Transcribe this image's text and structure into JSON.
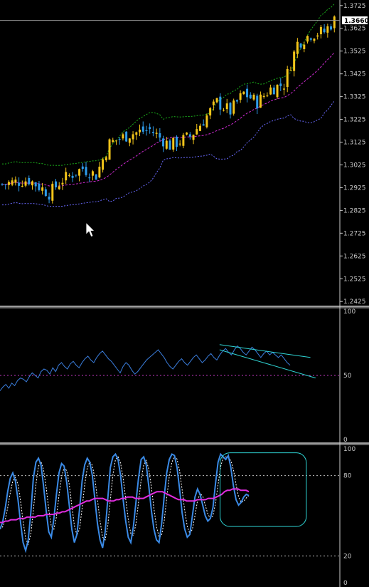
{
  "chart_data": [
    {
      "type": "candlestick",
      "pane": "price",
      "y_ticks": [
        "1.3725",
        "1.3625",
        "1.3525",
        "1.3425",
        "1.3325",
        "1.3225",
        "1.3125",
        "1.3025",
        "1.2925",
        "1.2825",
        "1.2725",
        "1.2625",
        "1.2525",
        "1.2425"
      ],
      "current_price_label": "1.3660",
      "current_price": 1.366,
      "ylim": [
        1.241,
        1.374
      ],
      "bar_count": 100,
      "waypoints": [
        [
          0,
          1.294
        ],
        [
          8,
          1.296
        ],
        [
          14,
          1.29
        ],
        [
          18,
          1.296
        ],
        [
          24,
          1.301
        ],
        [
          28,
          1.298
        ],
        [
          32,
          1.312
        ],
        [
          38,
          1.316
        ],
        [
          44,
          1.318
        ],
        [
          50,
          1.311
        ],
        [
          56,
          1.315
        ],
        [
          60,
          1.322
        ],
        [
          64,
          1.33
        ],
        [
          68,
          1.326
        ],
        [
          72,
          1.334
        ],
        [
          76,
          1.33
        ],
        [
          80,
          1.336
        ],
        [
          84,
          1.338
        ],
        [
          88,
          1.356
        ],
        [
          92,
          1.36
        ],
        [
          96,
          1.361
        ],
        [
          99,
          1.366
        ]
      ],
      "bollinger": {
        "upper_color": "#1bb01b",
        "middle_color": "#cc2ad0",
        "lower_color": "#6a6aff"
      },
      "up_color": "#f2c41a",
      "down_color": "#2e9bea",
      "cursor_arrow": {
        "bar": 25,
        "price": 1.2772
      }
    },
    {
      "type": "line",
      "pane": "rsi",
      "y_ticks": [
        "100",
        "50",
        "0"
      ],
      "ylim": [
        0,
        100
      ],
      "level": 50,
      "line_color": "#3a7ddc",
      "level_color": "#c23ac2",
      "values": [
        38,
        41,
        43,
        40,
        44,
        42,
        46,
        48,
        47,
        45,
        49,
        52,
        50,
        48,
        53,
        55,
        54,
        51,
        56,
        53,
        58,
        60,
        57,
        55,
        59,
        61,
        58,
        56,
        60,
        63,
        65,
        62,
        60,
        64,
        67,
        69,
        66,
        63,
        61,
        58,
        55,
        52,
        57,
        60,
        58,
        54,
        51,
        53,
        56,
        59,
        62,
        64,
        66,
        68,
        70,
        67,
        64,
        60,
        57,
        55,
        58,
        61,
        63,
        60,
        58,
        61,
        64,
        66,
        63,
        60,
        62,
        65,
        67,
        64,
        62,
        66,
        69,
        71,
        68,
        66,
        70,
        73,
        71,
        68,
        66,
        69,
        72,
        70,
        67,
        64,
        67,
        69,
        66,
        68,
        66,
        64,
        66,
        63,
        60,
        58
      ],
      "trendlines": [
        {
          "x1": 84,
          "y1": 74,
          "x2": 116,
          "y2": 64
        },
        {
          "x1": 84,
          "y1": 70,
          "x2": 118,
          "y2": 48
        }
      ],
      "trendline_color": "#2fd6d6"
    },
    {
      "type": "line",
      "pane": "stochastic",
      "y_ticks": [
        "100",
        "80",
        "20",
        "0"
      ],
      "ylim": [
        0,
        100
      ],
      "levels": [
        80,
        20
      ],
      "main_color": "#3a8ae6",
      "signal_color": "#ffffff",
      "ma_color": "#e22ce0",
      "main": [
        40,
        45,
        55,
        68,
        78,
        82,
        76,
        62,
        45,
        30,
        24,
        32,
        52,
        78,
        90,
        93,
        88,
        72,
        54,
        38,
        34,
        48,
        66,
        82,
        89,
        87,
        75,
        58,
        40,
        30,
        36,
        55,
        76,
        88,
        93,
        90,
        80,
        62,
        44,
        32,
        26,
        38,
        62,
        86,
        94,
        96,
        92,
        80,
        62,
        46,
        34,
        30,
        42,
        60,
        78,
        92,
        94,
        88,
        72,
        54,
        40,
        32,
        30,
        44,
        64,
        82,
        92,
        96,
        95,
        86,
        70,
        52,
        40,
        34,
        36,
        50,
        64,
        70,
        66,
        58,
        50,
        46,
        48,
        56,
        74,
        90,
        96,
        94,
        92,
        95,
        86,
        72,
        62,
        58,
        60,
        64,
        66,
        65
      ],
      "ma": [
        45,
        45,
        46,
        46,
        47,
        47,
        47,
        48,
        48,
        48,
        49,
        49,
        49,
        49,
        50,
        50,
        50,
        51,
        51,
        51,
        51,
        52,
        52,
        53,
        53,
        54,
        55,
        56,
        57,
        58,
        59,
        60,
        61,
        61,
        62,
        63,
        63,
        63,
        63,
        62,
        61,
        61,
        61,
        62,
        62,
        63,
        63,
        64,
        64,
        64,
        63,
        63,
        63,
        63,
        64,
        65,
        66,
        67,
        68,
        68,
        68,
        67,
        66,
        65,
        64,
        63,
        62,
        62,
        62,
        61,
        61,
        61,
        61,
        62,
        62,
        62,
        62,
        63,
        63,
        63,
        64,
        65,
        66,
        68,
        69,
        69,
        70,
        70,
        70,
        69,
        69,
        69,
        68
      ],
      "box": {
        "x1": 82,
        "y1": 97,
        "x2": 115,
        "y2": 42
      },
      "box_color": "#2fd6d6"
    }
  ]
}
